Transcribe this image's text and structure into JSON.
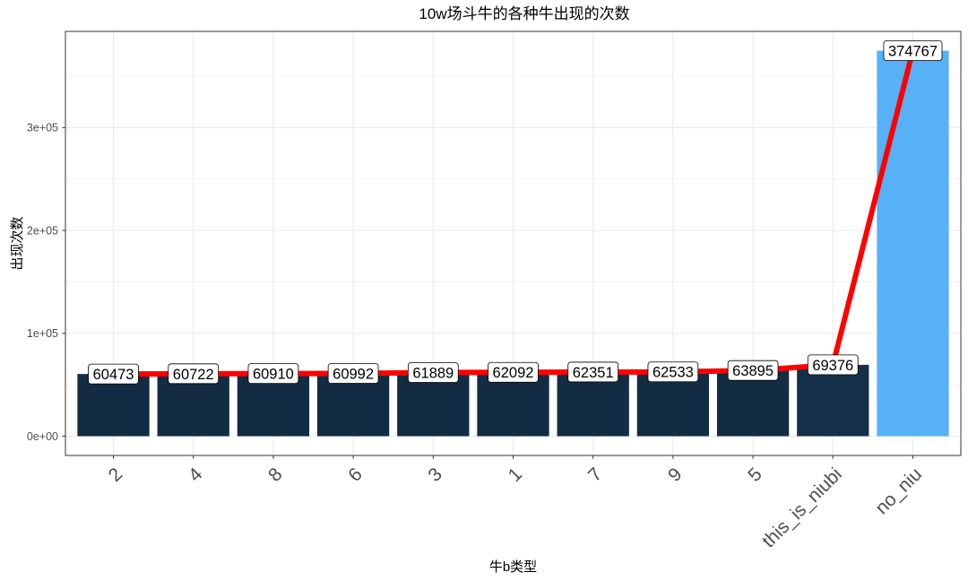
{
  "chart_data": {
    "type": "bar",
    "title": "10w场斗牛的各种牛出现的次数",
    "xlabel": "牛b类型",
    "ylabel": "出现次数",
    "categories": [
      "2",
      "4",
      "8",
      "6",
      "3",
      "1",
      "7",
      "9",
      "5",
      "this_is_niubi",
      "no_niu"
    ],
    "values": [
      60473,
      60722,
      60910,
      60992,
      61889,
      62092,
      62351,
      62533,
      63895,
      69376,
      374767
    ],
    "bar_colors": [
      "#132B43",
      "#132B43",
      "#132B43",
      "#132B43",
      "#132B43",
      "#132B43",
      "#132B43",
      "#132B43",
      "#132B43",
      "#152F48",
      "#56B1F7"
    ],
    "overlay_line": true,
    "line_color": "#FF0000",
    "show_value_labels": true,
    "ylim": [
      -18738,
      393505
    ],
    "yticks": [
      0,
      100000,
      200000,
      300000
    ],
    "ytick_labels": [
      "0e+00",
      "1e+05",
      "2e+05",
      "3e+05"
    ],
    "grid": true,
    "show_legend": false
  }
}
